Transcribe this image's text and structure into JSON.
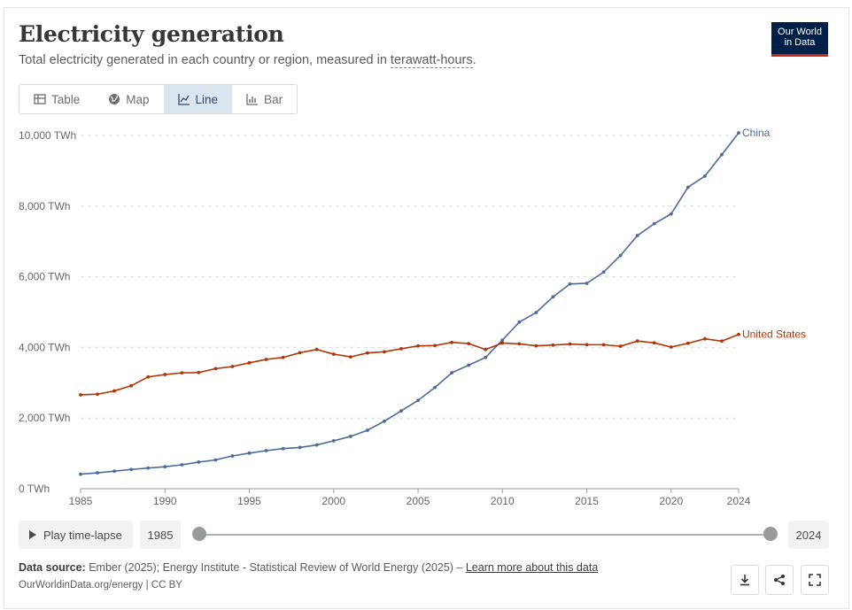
{
  "header": {
    "title": "Electricity generation",
    "subtitle_prefix": "Total electricity generated in each country or region, measured in ",
    "subtitle_unit": "terawatt-hours",
    "subtitle_suffix": "."
  },
  "logo": {
    "line1": "Our World",
    "line2": "in Data",
    "colors": {
      "bg": "#002147",
      "stripe": "#ce261e"
    }
  },
  "tabs": [
    {
      "label": "Table",
      "icon": "table-icon",
      "active": false
    },
    {
      "label": "Map",
      "icon": "globe-icon",
      "active": false
    },
    {
      "label": "Line",
      "icon": "line-chart-icon",
      "active": true
    },
    {
      "label": "Bar",
      "icon": "bar-chart-icon",
      "active": false
    }
  ],
  "chart_data": {
    "type": "line",
    "xlim": [
      1985,
      2024
    ],
    "ylim": [
      0,
      10000
    ],
    "x_ticks": [
      1985,
      1990,
      1995,
      2000,
      2005,
      2010,
      2015,
      2020,
      2024
    ],
    "y_ticks": [
      0,
      2000,
      4000,
      6000,
      8000,
      10000
    ],
    "y_tick_labels": [
      "0 TWh",
      "2,000 TWh",
      "4,000 TWh",
      "6,000 TWh",
      "8,000 TWh",
      "10,000 TWh"
    ],
    "grid": true,
    "x": [
      1985,
      1986,
      1987,
      1988,
      1989,
      1990,
      1991,
      1992,
      1993,
      1994,
      1995,
      1996,
      1997,
      1998,
      1999,
      2000,
      2001,
      2002,
      2003,
      2004,
      2005,
      2006,
      2007,
      2008,
      2009,
      2010,
      2011,
      2012,
      2013,
      2014,
      2015,
      2016,
      2017,
      2018,
      2019,
      2020,
      2021,
      2022,
      2023,
      2024
    ],
    "series": [
      {
        "name": "China",
        "color": "#4c6a9c",
        "values": [
          411,
          449,
          497,
          545,
          585,
          621,
          677,
          754,
          815,
          928,
          1007,
          1078,
          1135,
          1167,
          1239,
          1356,
          1480,
          1654,
          1911,
          2203,
          2500,
          2866,
          3282,
          3496,
          3715,
          4208,
          4716,
          4987,
          5431,
          5795,
          5815,
          6133,
          6604,
          7166,
          7503,
          7779,
          8534,
          8849,
          9456,
          10073
        ]
      },
      {
        "name": "United States",
        "color": "#b13507",
        "values": [
          2657,
          2676,
          2768,
          2915,
          3164,
          3232,
          3280,
          3288,
          3399,
          3459,
          3563,
          3660,
          3716,
          3849,
          3941,
          3808,
          3732,
          3843,
          3876,
          3962,
          4042,
          4053,
          4142,
          4108,
          3941,
          4125,
          4100,
          4047,
          4066,
          4094,
          4077,
          4076,
          4034,
          4181,
          4128,
          4010,
          4116,
          4243,
          4178,
          4368
        ]
      }
    ]
  },
  "controls": {
    "play_label": "Play time-lapse",
    "start_year": "1985",
    "end_year": "2024"
  },
  "footer": {
    "source_label": "Data source:",
    "source_text": " Ember (2025); Energy Institute - Statistical Review of World Energy (2025) – ",
    "learn_more": "Learn more about this data",
    "url_text": "OurWorldinData.org/energy | CC BY"
  }
}
